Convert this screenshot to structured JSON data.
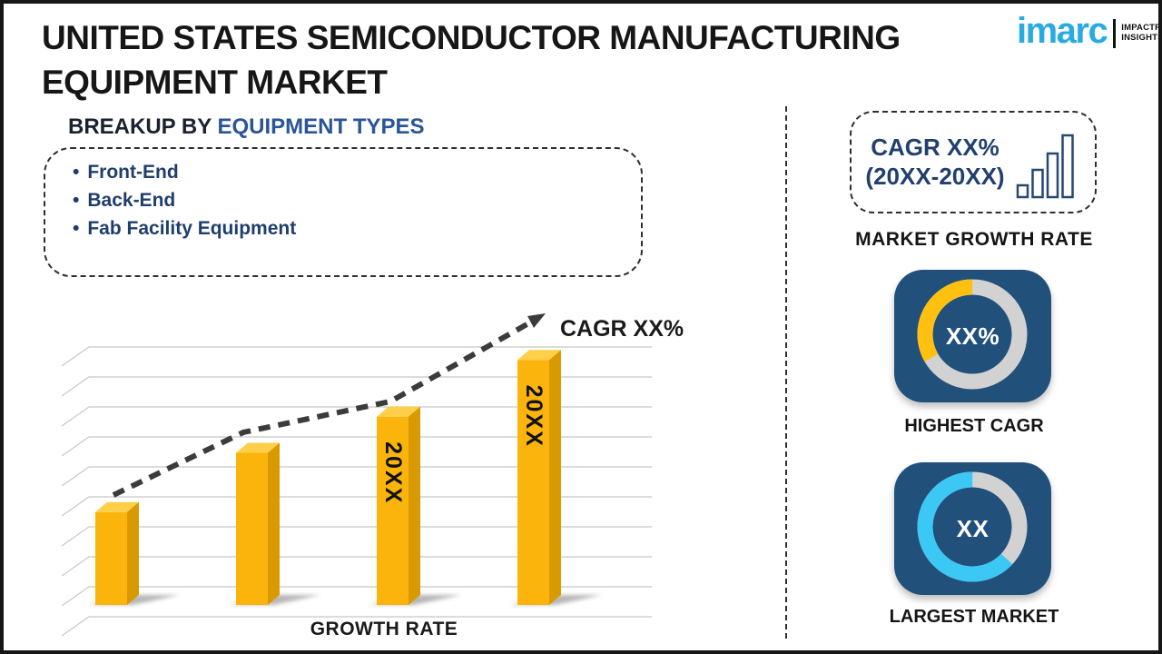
{
  "page": {
    "frame_color": "#161616",
    "background": "#ffffff"
  },
  "header": {
    "title_line1": "UNITED STATES SEMICONDUCTOR MANUFACTURING",
    "title_line2": "EQUIPMENT MARKET"
  },
  "logo": {
    "brand": "imarc",
    "tagline_line1": "IMPACTFUL",
    "tagline_line2": "INSIGHTS",
    "brand_color": "#29ABE2"
  },
  "breakup_section": {
    "heading_prefix": "BREAKUP BY ",
    "heading_highlight": "EQUIPMENT TYPES",
    "bullet_glyph": "•",
    "items": [
      "Front-End",
      "Back-End",
      "Fab Facility Equipment"
    ]
  },
  "chart_data": {
    "type": "bar",
    "title": "",
    "xlabel": "GROWTH RATE",
    "ylabel": "",
    "categories": [
      "",
      "",
      "20XX",
      "20XX"
    ],
    "values": [
      36,
      59,
      73,
      95
    ],
    "values_note": "relative bar heights in percent of plot height (no numeric axis shown)",
    "ylim": [
      0,
      100
    ],
    "grid": "on",
    "legend": "none",
    "trend_line_label": "CAGR XX%",
    "trend_shape": "rising dashed arrow",
    "bar_color": "#FBB40C",
    "bar_side_color": "#D89A00",
    "bar_top_color": "#FFCF49",
    "trend_color": "#3B3B3B",
    "grid_color": "#C8C8C8",
    "label_color": "#111111"
  },
  "right_panel": {
    "growth_box": {
      "line1": "CAGR XX%",
      "line2": "(20XX-20XX)"
    },
    "market_growth_rate_caption": "MARKET GROWTH RATE",
    "highest_cagr": {
      "value": "XX%",
      "caption": "HIGHEST CAGR",
      "card_color": "#21507B",
      "ring_track_color": "#D2D2D2",
      "ring_color": "#FFC010",
      "ring_start_deg": 240,
      "ring_sweep_deg": 120
    },
    "largest_market": {
      "value": "XX",
      "caption": "LARGEST MARKET",
      "card_color": "#21507B",
      "ring_track_color": "#D2D2D2",
      "ring_color": "#3BC8F4",
      "ring_start_deg": 133,
      "ring_sweep_deg": 227
    }
  }
}
